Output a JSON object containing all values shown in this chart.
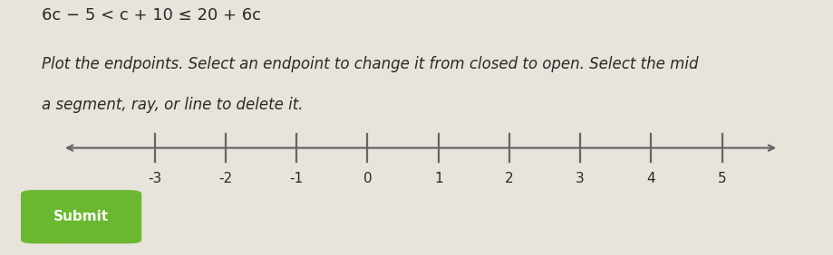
{
  "title_line": "6c − 5 < c + 10 ≤ 20 + 6c",
  "instruction_line1": "Plot the endpoints. Select an endpoint to change it from closed to open. Select the mid",
  "instruction_line2": "a segment, ray, or line to delete it.",
  "background_color": "#e8e3db",
  "number_line_min": -4.3,
  "number_line_max": 5.8,
  "tick_positions": [
    -3,
    -2,
    -1,
    0,
    1,
    2,
    3,
    4,
    5
  ],
  "tick_labels": [
    "-3",
    "-2",
    "-1",
    "0",
    "1",
    "2",
    "3",
    "4",
    "5"
  ],
  "submit_button_text": "Submit",
  "submit_button_color": "#6ab830",
  "submit_button_text_color": "#ffffff",
  "title_fontsize": 13,
  "instruction_fontsize": 12,
  "tick_label_fontsize": 11,
  "line_color": "#666666",
  "line_width": 1.6
}
